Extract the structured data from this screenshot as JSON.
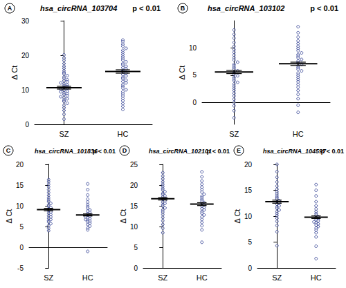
{
  "chart_data": [
    {
      "type": "scatter",
      "panel": "A",
      "title": "hsa_circRNA_103704",
      "subtitle": "p < 0.01",
      "y_label": "Δ Ct",
      "categories": [
        "SZ",
        "HC"
      ],
      "color": "#2b3990",
      "marker": "circle",
      "values": [
        [
          20.1,
          19.2,
          18.5,
          17.6,
          16.8,
          16.2,
          15.5,
          15.0,
          14.6,
          14.1,
          13.7,
          13.3,
          12.9,
          12.6,
          12.3,
          12.0,
          11.7,
          11.4,
          11.1,
          10.9,
          10.6,
          10.4,
          10.1,
          9.9,
          9.6,
          9.4,
          9.1,
          8.9,
          8.6,
          8.3,
          8.0,
          7.7,
          7.4,
          7.0,
          6.6,
          6.1,
          5.5,
          4.8,
          4.0,
          2.9,
          1.5
        ],
        [
          24.4,
          23.9,
          23.2,
          22.6,
          22.0,
          21.4,
          20.8,
          20.2,
          19.6,
          19.1,
          18.6,
          18.1,
          17.6,
          17.2,
          16.8,
          16.4,
          16.0,
          15.6,
          15.2,
          14.8,
          14.4,
          14.0,
          13.6,
          13.2,
          12.8,
          12.4,
          12.0,
          11.5,
          11.0,
          10.5,
          10.0,
          9.4,
          8.8,
          8.2,
          7.5,
          6.8,
          6.0,
          5.2,
          4.3
        ]
      ],
      "means": [
        10.6,
        15.3
      ],
      "errors": [
        0.4,
        0.5
      ],
      "ylim": [
        0,
        30
      ],
      "yticks": [
        0,
        10,
        20,
        30
      ]
    },
    {
      "type": "scatter",
      "panel": "B",
      "title": "hsa_circRNA_103102",
      "subtitle": "p < 0.01",
      "y_label": "Δ Ct",
      "categories": [
        "SZ",
        "HC"
      ],
      "color": "#2b3990",
      "marker": "circle",
      "values": [
        [
          13.3,
          12.5,
          11.8,
          11.0,
          10.3,
          9.7,
          9.2,
          8.7,
          8.2,
          7.8,
          7.4,
          7.0,
          6.7,
          6.4,
          6.1,
          5.8,
          5.5,
          5.2,
          4.9,
          4.6,
          4.3,
          4.0,
          3.7,
          3.4,
          3.0,
          2.6,
          2.2,
          1.7,
          1.2,
          0.6,
          0.0,
          -0.6,
          -1.5,
          -2.8
        ],
        [
          13.9,
          12.8,
          12.0,
          11.3,
          10.8,
          10.3,
          9.9,
          9.5,
          9.1,
          8.8,
          8.5,
          8.2,
          7.9,
          7.6,
          7.3,
          7.0,
          6.7,
          6.4,
          6.1,
          5.8,
          5.4,
          5.0,
          4.6,
          4.2,
          3.8,
          3.3,
          2.8,
          2.2,
          1.5,
          0.7,
          -0.5,
          -1.8
        ]
      ],
      "means": [
        5.6,
        7.1
      ],
      "errors": [
        0.3,
        0.3
      ],
      "ylim": [
        -4,
        15
      ],
      "yticks": [
        0,
        5,
        10
      ]
    },
    {
      "type": "scatter",
      "panel": "C",
      "title": "hsa_circRNA_101836",
      "subtitle": "p < 0.01",
      "y_label": "Δ Ct",
      "categories": [
        "SZ",
        "HC"
      ],
      "color": "#2b3990",
      "marker": "circle",
      "values": [
        [
          16.3,
          15.8,
          15.2,
          14.6,
          13.9,
          13.2,
          12.5,
          11.9,
          11.4,
          11.0,
          10.6,
          10.2,
          9.9,
          9.6,
          9.3,
          9.0,
          8.8,
          8.5,
          8.2,
          7.9,
          7.6,
          7.3,
          7.0,
          6.7,
          6.4,
          6.1,
          5.7,
          5.2,
          4.6,
          4.0
        ],
        [
          15.3,
          13.9,
          12.6,
          11.6,
          10.9,
          10.3,
          9.8,
          9.4,
          9.0,
          8.7,
          8.4,
          8.1,
          7.9,
          7.7,
          7.5,
          7.3,
          7.1,
          6.9,
          6.7,
          6.5,
          6.3,
          6.1,
          5.8,
          5.5,
          5.1,
          4.6,
          4.2,
          -1.0
        ]
      ],
      "means": [
        9.1,
        7.8
      ],
      "errors": [
        0.3,
        0.25
      ],
      "hlines": [
        0
      ],
      "ylim": [
        -5,
        20
      ],
      "yticks": [
        -5,
        0,
        5,
        10,
        15,
        20
      ]
    },
    {
      "type": "scatter",
      "panel": "D",
      "title": "hsa_circRNA_102101",
      "subtitle": "p < 0.01",
      "y_label": "Δ Ct",
      "categories": [
        "SZ",
        "HC"
      ],
      "color": "#2b3990",
      "marker": "circle",
      "values": [
        [
          23.0,
          22.2,
          21.5,
          20.8,
          20.2,
          19.7,
          19.2,
          18.8,
          18.4,
          18.0,
          17.7,
          17.4,
          17.1,
          16.8,
          16.5,
          16.2,
          15.9,
          15.6,
          15.3,
          14.9,
          14.5,
          14.0,
          13.5,
          12.9,
          12.2,
          11.4,
          10.5,
          9.6,
          8.5
        ],
        [
          23.2,
          22.0,
          21.0,
          20.2,
          19.5,
          18.9,
          18.3,
          17.8,
          17.3,
          16.9,
          16.5,
          16.1,
          15.8,
          15.5,
          15.2,
          14.9,
          14.6,
          14.3,
          14.0,
          13.6,
          13.2,
          12.8,
          12.3,
          11.7,
          11.0,
          10.2,
          9.2,
          6.2
        ]
      ],
      "means": [
        16.7,
        15.4
      ],
      "errors": [
        0.3,
        0.35
      ],
      "ylim": [
        0,
        25
      ],
      "yticks": [
        0,
        5,
        10,
        15,
        20,
        25
      ]
    },
    {
      "type": "scatter",
      "panel": "E",
      "title": "hsa_circRNA_104597",
      "subtitle": "p < 0.01",
      "y_label": "Δ Ct",
      "categories": [
        "SZ",
        "HC"
      ],
      "color": "#2b3990",
      "marker": "circle",
      "values": [
        [
          20.0,
          18.6,
          17.5,
          16.6,
          15.8,
          15.2,
          14.7,
          14.3,
          13.9,
          13.6,
          13.3,
          13.0,
          12.8,
          12.5,
          12.3,
          12.0,
          11.8,
          11.5,
          11.2,
          10.9,
          10.5,
          10.1,
          9.6,
          9.0,
          8.2,
          7.0,
          4.3
        ],
        [
          16.1,
          15.0,
          13.9,
          12.8,
          12.0,
          11.4,
          10.9,
          10.5,
          10.2,
          9.9,
          9.7,
          9.5,
          9.3,
          9.1,
          8.9,
          8.7,
          8.5,
          8.3,
          8.0,
          7.7,
          7.3,
          6.8,
          6.0,
          4.2,
          1.8
        ]
      ],
      "means": [
        12.8,
        9.8
      ],
      "errors": [
        0.3,
        0.25
      ],
      "ylim": [
        0,
        20
      ],
      "yticks": [
        0,
        5,
        10,
        15,
        20
      ]
    }
  ]
}
